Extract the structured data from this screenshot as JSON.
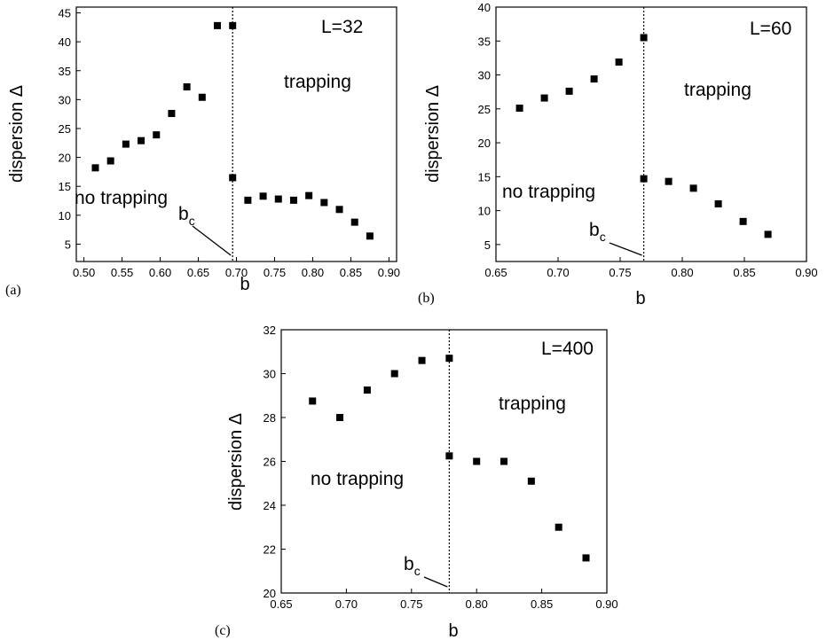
{
  "chart_data": [
    {
      "type": "scatter",
      "panel": "(a)",
      "xlabel": "b",
      "ylabel": "dispersion Δ",
      "xlim": [
        0.49,
        0.91
      ],
      "ylim": [
        2,
        46
      ],
      "xticks": [
        0.5,
        0.55,
        0.6,
        0.65,
        0.7,
        0.75,
        0.8,
        0.85,
        0.9
      ],
      "xtick_labels": [
        "0.50",
        "0.55",
        "0.60",
        "0.65",
        "0.70",
        "0.75",
        "0.80",
        "0.85",
        "0.90"
      ],
      "yticks": [
        5,
        10,
        15,
        20,
        25,
        30,
        35,
        40,
        45
      ],
      "ytick_labels": [
        "5",
        "10",
        "15",
        "20",
        "25",
        "30",
        "35",
        "40",
        "45"
      ],
      "critical_b": 0.695,
      "critical_label": "b",
      "critical_subscript": "c",
      "size_label": "L=32",
      "region_left_label": "no trapping",
      "region_right_label": "trapping",
      "points": [
        {
          "x": 0.515,
          "y": 18.2
        },
        {
          "x": 0.535,
          "y": 19.4
        },
        {
          "x": 0.555,
          "y": 22.3
        },
        {
          "x": 0.575,
          "y": 22.9
        },
        {
          "x": 0.595,
          "y": 23.9
        },
        {
          "x": 0.615,
          "y": 27.6
        },
        {
          "x": 0.635,
          "y": 32.2
        },
        {
          "x": 0.655,
          "y": 30.4
        },
        {
          "x": 0.675,
          "y": 42.8
        },
        {
          "x": 0.695,
          "y": 42.8
        },
        {
          "x": 0.695,
          "y": 16.5
        },
        {
          "x": 0.715,
          "y": 12.6
        },
        {
          "x": 0.735,
          "y": 13.3
        },
        {
          "x": 0.755,
          "y": 12.8
        },
        {
          "x": 0.775,
          "y": 12.6
        },
        {
          "x": 0.795,
          "y": 13.4
        },
        {
          "x": 0.815,
          "y": 12.2
        },
        {
          "x": 0.835,
          "y": 11.0
        },
        {
          "x": 0.855,
          "y": 8.8
        },
        {
          "x": 0.875,
          "y": 6.4
        }
      ]
    },
    {
      "type": "scatter",
      "panel": "(b)",
      "xlabel": "b",
      "ylabel": "dispersion Δ",
      "xlim": [
        0.65,
        0.9
      ],
      "ylim": [
        2.5,
        40
      ],
      "xticks": [
        0.65,
        0.7,
        0.75,
        0.8,
        0.85,
        0.9
      ],
      "xtick_labels": [
        "0.65",
        "0.70",
        "0.75",
        "0.80",
        "0.85",
        "0.90"
      ],
      "yticks": [
        5,
        10,
        15,
        20,
        25,
        30,
        35,
        40
      ],
      "ytick_labels": [
        "5",
        "10",
        "15",
        "20",
        "25",
        "30",
        "35",
        "40"
      ],
      "critical_b": 0.769,
      "critical_label": "b",
      "critical_subscript": "c",
      "size_label": "L=60",
      "region_left_label": "no trapping",
      "region_right_label": "trapping",
      "points": [
        {
          "x": 0.669,
          "y": 25.1
        },
        {
          "x": 0.689,
          "y": 26.6
        },
        {
          "x": 0.709,
          "y": 27.6
        },
        {
          "x": 0.729,
          "y": 29.4
        },
        {
          "x": 0.749,
          "y": 31.9
        },
        {
          "x": 0.769,
          "y": 35.5
        },
        {
          "x": 0.769,
          "y": 14.7
        },
        {
          "x": 0.789,
          "y": 14.3
        },
        {
          "x": 0.809,
          "y": 13.3
        },
        {
          "x": 0.829,
          "y": 11.0
        },
        {
          "x": 0.849,
          "y": 8.4
        },
        {
          "x": 0.869,
          "y": 6.5
        }
      ]
    },
    {
      "type": "scatter",
      "panel": "(c)",
      "xlabel": "b",
      "ylabel": "dispersion Δ",
      "xlim": [
        0.65,
        0.9
      ],
      "ylim": [
        20,
        32
      ],
      "xticks": [
        0.65,
        0.7,
        0.75,
        0.8,
        0.85,
        0.9
      ],
      "xtick_labels": [
        "0.65",
        "0.70",
        "0.75",
        "0.80",
        "0.85",
        "0.90"
      ],
      "yticks": [
        20,
        22,
        24,
        26,
        28,
        30,
        32
      ],
      "ytick_labels": [
        "20",
        "22",
        "24",
        "26",
        "28",
        "30",
        "32"
      ],
      "critical_b": 0.779,
      "critical_label": "b",
      "critical_subscript": "c",
      "size_label": "L=400",
      "region_left_label": "no trapping",
      "region_right_label": "trapping",
      "points": [
        {
          "x": 0.674,
          "y": 28.75
        },
        {
          "x": 0.695,
          "y": 28.0
        },
        {
          "x": 0.716,
          "y": 29.25
        },
        {
          "x": 0.737,
          "y": 30.0
        },
        {
          "x": 0.758,
          "y": 30.6
        },
        {
          "x": 0.779,
          "y": 30.7
        },
        {
          "x": 0.779,
          "y": 26.25
        },
        {
          "x": 0.8,
          "y": 26.0
        },
        {
          "x": 0.821,
          "y": 26.0
        },
        {
          "x": 0.842,
          "y": 25.1
        },
        {
          "x": 0.863,
          "y": 23.0
        },
        {
          "x": 0.884,
          "y": 21.6
        }
      ]
    }
  ]
}
